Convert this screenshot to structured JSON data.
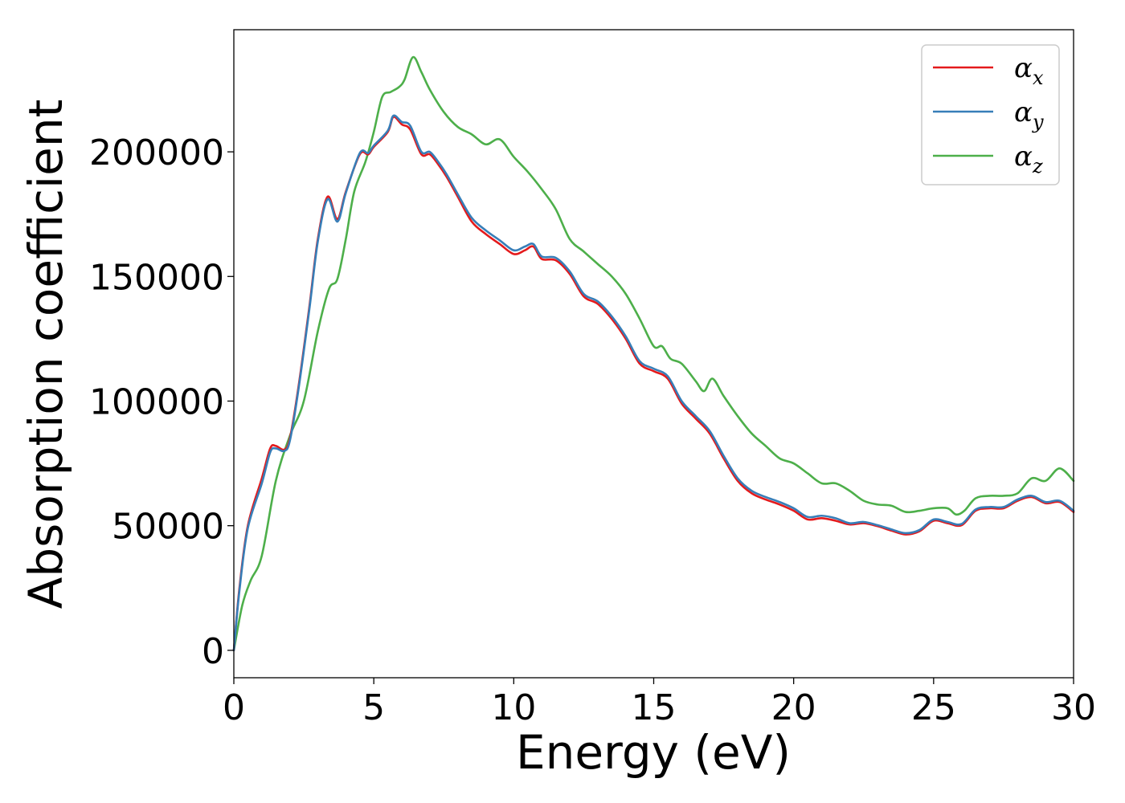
{
  "chart_data": {
    "type": "line",
    "title": "",
    "xlabel": "Energy (eV)",
    "ylabel": "Absorption coefficient",
    "xlim": [
      0,
      30
    ],
    "ylim": [
      -11000,
      249000
    ],
    "xticks": [
      0,
      5,
      10,
      15,
      20,
      25,
      30
    ],
    "xtick_labels": [
      "0",
      "5",
      "10",
      "15",
      "20",
      "25",
      "30"
    ],
    "yticks": [
      0,
      50000,
      100000,
      150000,
      200000
    ],
    "ytick_labels": [
      "0",
      "50000",
      "100000",
      "150000",
      "200000"
    ],
    "grid": false,
    "legend": {
      "placement": "top-right"
    },
    "series": [
      {
        "name": "α_x",
        "label_main": "α",
        "label_sub": "x",
        "color": "#e41a1c",
        "x": [
          0,
          0.2,
          0.5,
          1.0,
          1.3,
          1.5,
          1.8,
          2.0,
          2.3,
          2.7,
          3.0,
          3.35,
          3.7,
          4.0,
          4.5,
          4.8,
          5.0,
          5.5,
          5.7,
          6.0,
          6.3,
          6.7,
          7.0,
          7.3,
          7.6,
          8.0,
          8.5,
          9.0,
          9.5,
          10.0,
          10.4,
          10.7,
          11.0,
          11.5,
          12.0,
          12.5,
          13.0,
          13.5,
          14.0,
          14.5,
          15.0,
          15.5,
          16.0,
          16.5,
          17.0,
          17.5,
          18.0,
          18.5,
          19.0,
          19.5,
          20.0,
          20.5,
          21.0,
          21.5,
          22.0,
          22.5,
          23.0,
          23.5,
          24.0,
          24.5,
          25.0,
          25.5,
          26.0,
          26.5,
          27.0,
          27.5,
          28.0,
          28.5,
          29.0,
          29.5,
          30.0
        ],
        "y": [
          0,
          25000,
          50000,
          69000,
          81000,
          82000,
          80500,
          85000,
          105000,
          138000,
          165000,
          182000,
          173000,
          184000,
          199000,
          199000,
          202000,
          208000,
          214000,
          211000,
          209000,
          199000,
          199000,
          195000,
          190000,
          182000,
          172000,
          167000,
          163000,
          159000,
          160500,
          162000,
          157000,
          156500,
          151000,
          142000,
          139000,
          133000,
          125000,
          115000,
          112000,
          109000,
          99000,
          93000,
          87000,
          77000,
          68000,
          63000,
          60500,
          58500,
          56000,
          52500,
          53000,
          52000,
          50500,
          51000,
          49800,
          48000,
          46500,
          47800,
          52000,
          51000,
          50200,
          56000,
          57000,
          57000,
          60000,
          61500,
          59000,
          59500,
          55500
        ]
      },
      {
        "name": "α_y",
        "label_main": "α",
        "label_sub": "y",
        "color": "#377eb8",
        "x": [
          0,
          0.2,
          0.5,
          1.0,
          1.3,
          1.5,
          1.8,
          2.0,
          2.3,
          2.7,
          3.0,
          3.35,
          3.7,
          4.0,
          4.5,
          4.8,
          5.0,
          5.5,
          5.7,
          6.0,
          6.3,
          6.7,
          7.0,
          7.3,
          7.6,
          8.0,
          8.5,
          9.0,
          9.5,
          10.0,
          10.4,
          10.7,
          11.0,
          11.5,
          12.0,
          12.5,
          13.0,
          13.5,
          14.0,
          14.5,
          15.0,
          15.5,
          16.0,
          16.5,
          17.0,
          17.5,
          18.0,
          18.5,
          19.0,
          19.5,
          20.0,
          20.5,
          21.0,
          21.5,
          22.0,
          22.5,
          23.0,
          23.5,
          24.0,
          24.5,
          25.0,
          25.5,
          26.0,
          26.5,
          27.0,
          27.5,
          28.0,
          28.5,
          29.0,
          29.5,
          30.0
        ],
        "y": [
          0,
          24000,
          49000,
          67000,
          79500,
          81000,
          80000,
          84000,
          104000,
          137000,
          164000,
          181000,
          172000,
          183500,
          199500,
          199500,
          202500,
          208500,
          214500,
          212000,
          210500,
          200000,
          200000,
          196000,
          191000,
          183000,
          173500,
          168500,
          164500,
          160500,
          162000,
          163000,
          158000,
          157500,
          152000,
          143000,
          140000,
          134000,
          126000,
          116000,
          113000,
          110000,
          100000,
          94000,
          88000,
          78000,
          69000,
          64000,
          61500,
          59500,
          57000,
          53500,
          54000,
          53000,
          51000,
          51500,
          50200,
          48500,
          47000,
          48300,
          52500,
          51500,
          50700,
          56500,
          57500,
          57500,
          60500,
          62000,
          59500,
          60000,
          56000
        ]
      },
      {
        "name": "α_z",
        "label_main": "α",
        "label_sub": "z",
        "color": "#4daf4a",
        "x": [
          0,
          0.3,
          0.6,
          1.0,
          1.5,
          2.0,
          2.5,
          3.0,
          3.4,
          3.7,
          4.0,
          4.3,
          4.7,
          5.0,
          5.3,
          5.6,
          5.9,
          6.1,
          6.4,
          6.7,
          7.0,
          7.5,
          8.0,
          8.5,
          9.0,
          9.5,
          10.0,
          10.5,
          11.0,
          11.5,
          12.0,
          12.5,
          13.0,
          13.5,
          14.0,
          14.5,
          15.0,
          15.3,
          15.6,
          16.0,
          16.5,
          16.8,
          17.1,
          17.5,
          18.0,
          18.5,
          19.0,
          19.5,
          20.0,
          20.5,
          21.0,
          21.5,
          22.0,
          22.5,
          23.0,
          23.5,
          24.0,
          24.5,
          25.0,
          25.5,
          25.8,
          26.1,
          26.5,
          27.0,
          27.5,
          28.0,
          28.5,
          29.0,
          29.5,
          30.0
        ],
        "y": [
          0,
          18000,
          28000,
          38000,
          68000,
          86000,
          100000,
          128000,
          145000,
          149000,
          165000,
          184000,
          196000,
          208000,
          222000,
          224000,
          226000,
          229000,
          238000,
          232000,
          225000,
          216000,
          210000,
          207000,
          203000,
          205000,
          198000,
          192000,
          185000,
          177000,
          165000,
          160000,
          155000,
          150000,
          143000,
          133000,
          122000,
          122000,
          117000,
          115000,
          108000,
          104000,
          109000,
          102000,
          94000,
          87000,
          82000,
          77000,
          75000,
          71000,
          67000,
          67000,
          64000,
          60000,
          58500,
          58000,
          55500,
          56000,
          57000,
          57000,
          54500,
          56000,
          61000,
          62000,
          62000,
          63000,
          69000,
          68000,
          73000,
          68000
        ]
      }
    ]
  }
}
